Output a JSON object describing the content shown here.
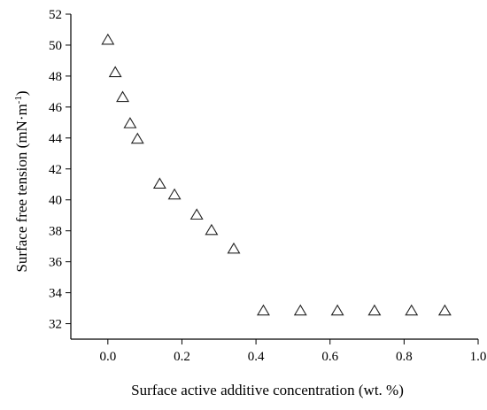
{
  "chart_data": {
    "type": "scatter",
    "xlabel": "Surface active additive concentration (wt. %)",
    "ylabel_main": "Surface free tension (mN·m",
    "ylabel_sup": "-1",
    "ylabel_close": ")",
    "xlim": [
      -0.1,
      1.0
    ],
    "ylim": [
      31,
      52
    ],
    "x_ticks": [
      0.0,
      0.2,
      0.4,
      0.6,
      0.8,
      1.0
    ],
    "x_tick_labels": [
      "0.0",
      "0.2",
      "0.4",
      "0.6",
      "0.8",
      "1.0"
    ],
    "y_ticks": [
      32,
      34,
      36,
      38,
      40,
      42,
      44,
      46,
      48,
      50,
      52
    ],
    "y_tick_labels": [
      "32",
      "34",
      "36",
      "38",
      "40",
      "42",
      "44",
      "46",
      "48",
      "50",
      "52"
    ],
    "marker": "open-triangle",
    "grid": false,
    "series": [
      {
        "points": [
          {
            "x": 0.0,
            "y": 50.3
          },
          {
            "x": 0.02,
            "y": 48.2
          },
          {
            "x": 0.04,
            "y": 46.6
          },
          {
            "x": 0.06,
            "y": 44.9
          },
          {
            "x": 0.08,
            "y": 43.9
          },
          {
            "x": 0.14,
            "y": 41.0
          },
          {
            "x": 0.18,
            "y": 40.3
          },
          {
            "x": 0.24,
            "y": 39.0
          },
          {
            "x": 0.28,
            "y": 38.0
          },
          {
            "x": 0.34,
            "y": 36.8
          },
          {
            "x": 0.42,
            "y": 32.8
          },
          {
            "x": 0.52,
            "y": 32.8
          },
          {
            "x": 0.62,
            "y": 32.8
          },
          {
            "x": 0.72,
            "y": 32.8
          },
          {
            "x": 0.82,
            "y": 32.8
          },
          {
            "x": 0.91,
            "y": 32.8
          }
        ]
      }
    ]
  }
}
